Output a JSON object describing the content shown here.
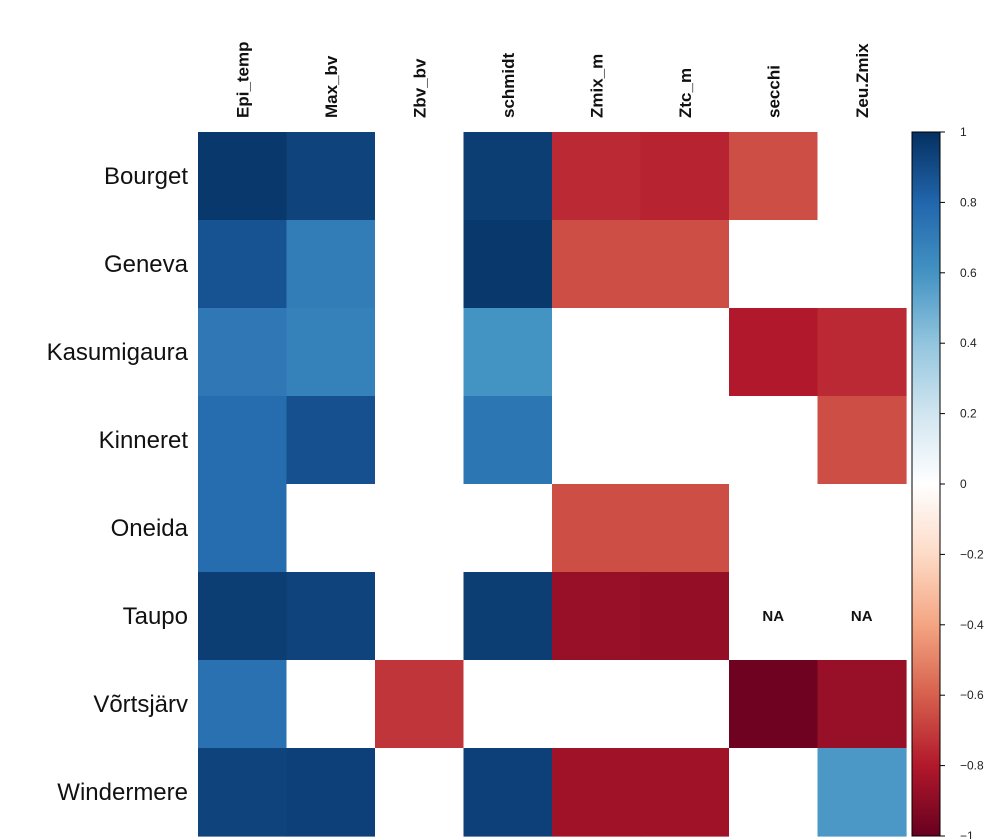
{
  "chart_data": {
    "type": "heatmap",
    "title": "",
    "xlabel": "",
    "ylabel": "",
    "columns": [
      "Epi_temp",
      "Max_bv",
      "Zbv_bv",
      "schmidt",
      "Zmix_m",
      "Ztc_m",
      "secchi",
      "Zeu.Zmix"
    ],
    "rows": [
      "Bourget",
      "Geneva",
      "Kasumigaura",
      "Kinneret",
      "Oneida",
      "Taupo",
      "Võrtsjärv",
      "Windermere"
    ],
    "values": [
      [
        0.97,
        0.93,
        0.0,
        0.95,
        -0.75,
        -0.77,
        -0.65,
        0.0
      ],
      [
        0.87,
        0.7,
        0.0,
        0.97,
        -0.65,
        -0.65,
        0.0,
        0.0
      ],
      [
        0.72,
        0.68,
        0.0,
        0.6,
        0.0,
        0.0,
        -0.8,
        -0.75
      ],
      [
        0.77,
        0.88,
        0.0,
        0.73,
        0.0,
        0.0,
        0.0,
        -0.65
      ],
      [
        0.77,
        0.0,
        0.0,
        0.0,
        -0.65,
        -0.65,
        0.0,
        0.0
      ],
      [
        0.95,
        0.93,
        0.0,
        0.95,
        -0.87,
        -0.88,
        null,
        null
      ],
      [
        0.75,
        0.0,
        -0.72,
        0.0,
        0.0,
        0.0,
        -0.98,
        -0.87
      ],
      [
        0.93,
        0.94,
        0.0,
        0.94,
        -0.85,
        -0.85,
        0.0,
        0.58
      ]
    ],
    "na_text": "NA",
    "colorbar": {
      "range": [
        -1,
        1
      ],
      "ticks": [
        "1",
        "0.8",
        "0.6",
        "0.4",
        "0.2",
        "0",
        "−0.2",
        "−0.4",
        "−0.6",
        "−0.8",
        "−1"
      ],
      "colors": [
        "#67001f",
        "#b2182b",
        "#d6604d",
        "#f4a582",
        "#fddbc7",
        "#ffffff",
        "#d1e5f0",
        "#92c5de",
        "#4393c3",
        "#2166ac",
        "#053061"
      ]
    },
    "legend": "right",
    "grid": false
  }
}
